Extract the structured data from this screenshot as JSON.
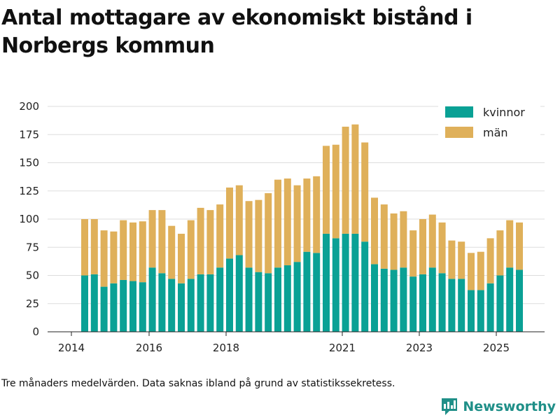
{
  "title": "Antal mottagare av ekonomiskt bistånd i Norbergs kommun",
  "footnote": "Tre månaders medelvärden. Data saknas ibland på grund av statistikssekretess.",
  "brand": {
    "name": "Newsworthy",
    "icon": "bar-chart-logo-icon"
  },
  "colors": {
    "kvinnor": "#0aa195",
    "man": "#dfb05a",
    "grid": "#dddddd",
    "brand": "#1f8f88"
  },
  "chart_data": {
    "type": "bar",
    "stacked": true,
    "x_ticks": [
      "2014",
      "2016",
      "2018",
      "2021",
      "2023",
      "2025"
    ],
    "y_ticks": [
      "0",
      "25",
      "50",
      "75",
      "100",
      "125",
      "150",
      "175",
      "200"
    ],
    "ylim": [
      0,
      200
    ],
    "legend_position": "top-right",
    "series": [
      {
        "name": "kvinnor",
        "values": [
          50,
          51,
          40,
          43,
          46,
          45,
          44,
          57,
          52,
          47,
          43,
          47,
          51,
          51,
          57,
          65,
          68,
          57,
          53,
          52,
          57,
          59,
          62,
          71,
          70,
          87,
          83,
          87,
          87,
          80,
          60,
          56,
          55,
          57,
          49,
          51,
          57,
          52,
          47,
          47,
          37,
          37,
          43,
          50,
          57,
          55
        ]
      },
      {
        "name": "män",
        "values": [
          50,
          49,
          50,
          46,
          53,
          52,
          54,
          51,
          56,
          47,
          44,
          52,
          59,
          57,
          56,
          63,
          62,
          59,
          64,
          71,
          78,
          77,
          68,
          65,
          68,
          78,
          83,
          95,
          97,
          88,
          59,
          57,
          50,
          50,
          41,
          49,
          47,
          45,
          34,
          33,
          33,
          34,
          40,
          40,
          42,
          42
        ]
      }
    ]
  }
}
